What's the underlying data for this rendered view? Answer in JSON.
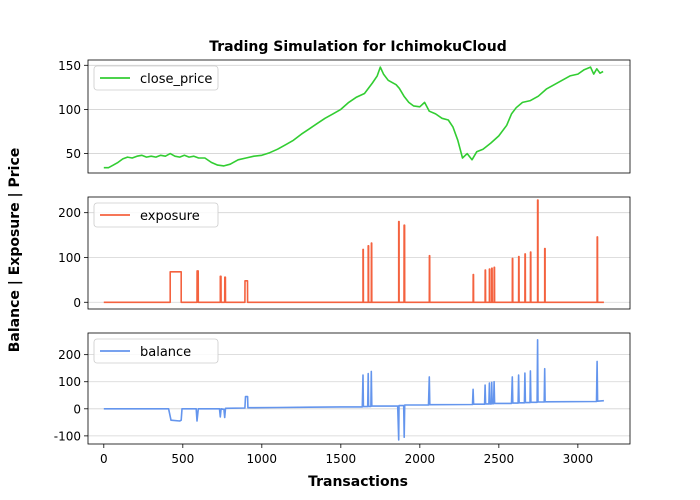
{
  "chart_data": {
    "type": "line",
    "title": "Trading Simulation for IchimokuCloud",
    "xlabel": "Transactions",
    "ylabel": "Balance | Exposure | Price",
    "xlim": [
      -100,
      3330
    ],
    "xticks": [
      0,
      500,
      1000,
      1500,
      2000,
      2500,
      3000
    ],
    "grid": "horizontal",
    "legend_position": "upper-left",
    "panels": [
      {
        "name": "price",
        "series_name": "close_price",
        "color": "#32cd32",
        "ylim": [
          28,
          156
        ],
        "yticks": [
          50,
          100,
          150
        ],
        "points": [
          [
            0,
            34
          ],
          [
            30,
            34
          ],
          [
            60,
            37
          ],
          [
            90,
            40
          ],
          [
            120,
            44
          ],
          [
            150,
            46
          ],
          [
            180,
            45
          ],
          [
            210,
            47
          ],
          [
            240,
            48
          ],
          [
            270,
            46
          ],
          [
            300,
            47
          ],
          [
            330,
            46
          ],
          [
            360,
            48
          ],
          [
            390,
            47
          ],
          [
            420,
            50
          ],
          [
            450,
            47
          ],
          [
            480,
            46
          ],
          [
            510,
            48
          ],
          [
            540,
            46
          ],
          [
            570,
            47
          ],
          [
            600,
            45
          ],
          [
            640,
            45
          ],
          [
            680,
            40
          ],
          [
            720,
            37
          ],
          [
            760,
            36
          ],
          [
            800,
            38
          ],
          [
            850,
            43
          ],
          [
            900,
            45
          ],
          [
            950,
            47
          ],
          [
            1000,
            48
          ],
          [
            1050,
            51
          ],
          [
            1100,
            55
          ],
          [
            1150,
            60
          ],
          [
            1200,
            65
          ],
          [
            1250,
            72
          ],
          [
            1300,
            78
          ],
          [
            1350,
            84
          ],
          [
            1400,
            90
          ],
          [
            1450,
            95
          ],
          [
            1500,
            100
          ],
          [
            1550,
            108
          ],
          [
            1600,
            114
          ],
          [
            1650,
            118
          ],
          [
            1700,
            130
          ],
          [
            1730,
            138
          ],
          [
            1750,
            148
          ],
          [
            1770,
            140
          ],
          [
            1800,
            133
          ],
          [
            1850,
            128
          ],
          [
            1870,
            124
          ],
          [
            1900,
            115
          ],
          [
            1930,
            108
          ],
          [
            1960,
            104
          ],
          [
            2000,
            103
          ],
          [
            2030,
            108
          ],
          [
            2060,
            98
          ],
          [
            2100,
            95
          ],
          [
            2140,
            90
          ],
          [
            2180,
            88
          ],
          [
            2210,
            80
          ],
          [
            2240,
            65
          ],
          [
            2270,
            45
          ],
          [
            2300,
            50
          ],
          [
            2330,
            43
          ],
          [
            2360,
            52
          ],
          [
            2400,
            55
          ],
          [
            2450,
            62
          ],
          [
            2500,
            70
          ],
          [
            2550,
            82
          ],
          [
            2580,
            95
          ],
          [
            2610,
            102
          ],
          [
            2650,
            108
          ],
          [
            2700,
            110
          ],
          [
            2750,
            115
          ],
          [
            2800,
            123
          ],
          [
            2850,
            128
          ],
          [
            2900,
            133
          ],
          [
            2950,
            138
          ],
          [
            3000,
            140
          ],
          [
            3040,
            145
          ],
          [
            3080,
            148
          ],
          [
            3100,
            140
          ],
          [
            3120,
            146
          ],
          [
            3140,
            141
          ],
          [
            3160,
            143
          ]
        ]
      },
      {
        "name": "exposure",
        "series_name": "exposure",
        "color": "#f4623f",
        "ylim": [
          -15,
          235
        ],
        "yticks": [
          0,
          100,
          200
        ],
        "baseline": 0,
        "pulses": [
          {
            "x0": 420,
            "x1": 490,
            "v": 68
          },
          {
            "x0": 590,
            "x1": 598,
            "v": 70
          },
          {
            "x0": 737,
            "x1": 742,
            "v": 58
          },
          {
            "x0": 765,
            "x1": 770,
            "v": 56
          },
          {
            "x0": 893,
            "x1": 910,
            "v": 48
          },
          {
            "x0": 1640,
            "x1": 1643,
            "v": 118
          },
          {
            "x0": 1673,
            "x1": 1676,
            "v": 126
          },
          {
            "x0": 1693,
            "x1": 1696,
            "v": 132
          },
          {
            "x0": 1866,
            "x1": 1869,
            "v": 180
          },
          {
            "x0": 1900,
            "x1": 1904,
            "v": 172
          },
          {
            "x0": 2060,
            "x1": 2063,
            "v": 104
          },
          {
            "x0": 2337,
            "x1": 2340,
            "v": 62
          },
          {
            "x0": 2413,
            "x1": 2416,
            "v": 72
          },
          {
            "x0": 2440,
            "x1": 2443,
            "v": 74
          },
          {
            "x0": 2455,
            "x1": 2458,
            "v": 76
          },
          {
            "x0": 2470,
            "x1": 2473,
            "v": 78
          },
          {
            "x0": 2585,
            "x1": 2588,
            "v": 98
          },
          {
            "x0": 2625,
            "x1": 2628,
            "v": 102
          },
          {
            "x0": 2665,
            "x1": 2668,
            "v": 108
          },
          {
            "x0": 2700,
            "x1": 2703,
            "v": 112
          },
          {
            "x0": 2745,
            "x1": 2748,
            "v": 228
          },
          {
            "x0": 2790,
            "x1": 2793,
            "v": 120
          },
          {
            "x0": 3122,
            "x1": 3125,
            "v": 146
          }
        ],
        "x_end": 3165
      },
      {
        "name": "balance",
        "series_name": "balance",
        "color": "#6495ed",
        "ylim": [
          -130,
          280
        ],
        "yticks": [
          -100,
          0,
          100,
          200
        ],
        "points": [
          [
            0,
            0
          ],
          [
            410,
            0
          ],
          [
            425,
            -42
          ],
          [
            480,
            -45
          ],
          [
            490,
            -42
          ],
          [
            495,
            0
          ],
          [
            585,
            0
          ],
          [
            590,
            -45
          ],
          [
            598,
            0
          ],
          [
            732,
            0
          ],
          [
            737,
            -30
          ],
          [
            742,
            0
          ],
          [
            760,
            -2
          ],
          [
            765,
            -32
          ],
          [
            770,
            2
          ],
          [
            893,
            3
          ],
          [
            897,
            45
          ],
          [
            910,
            45
          ],
          [
            912,
            4
          ],
          [
            1100,
            5
          ],
          [
            1300,
            6
          ],
          [
            1500,
            7
          ],
          [
            1636,
            7
          ],
          [
            1640,
            125
          ],
          [
            1643,
            8
          ],
          [
            1670,
            8
          ],
          [
            1673,
            130
          ],
          [
            1676,
            9
          ],
          [
            1690,
            9
          ],
          [
            1693,
            138
          ],
          [
            1696,
            10
          ],
          [
            1860,
            10
          ],
          [
            1866,
            -115
          ],
          [
            1868,
            12
          ],
          [
            1898,
            12
          ],
          [
            1901,
            -105
          ],
          [
            1904,
            14
          ],
          [
            2055,
            14
          ],
          [
            2060,
            118
          ],
          [
            2063,
            15
          ],
          [
            2333,
            16
          ],
          [
            2337,
            72
          ],
          [
            2340,
            17
          ],
          [
            2410,
            17
          ],
          [
            2413,
            88
          ],
          [
            2416,
            18
          ],
          [
            2437,
            18
          ],
          [
            2440,
            95
          ],
          [
            2443,
            18
          ],
          [
            2452,
            18
          ],
          [
            2455,
            98
          ],
          [
            2458,
            19
          ],
          [
            2467,
            19
          ],
          [
            2470,
            100
          ],
          [
            2473,
            20
          ],
          [
            2580,
            20
          ],
          [
            2585,
            118
          ],
          [
            2588,
            21
          ],
          [
            2622,
            21
          ],
          [
            2625,
            125
          ],
          [
            2628,
            22
          ],
          [
            2662,
            22
          ],
          [
            2665,
            132
          ],
          [
            2668,
            23
          ],
          [
            2697,
            23
          ],
          [
            2700,
            140
          ],
          [
            2703,
            24
          ],
          [
            2742,
            24
          ],
          [
            2745,
            255
          ],
          [
            2748,
            25
          ],
          [
            2787,
            25
          ],
          [
            2790,
            148
          ],
          [
            2793,
            26
          ],
          [
            3118,
            27
          ],
          [
            3122,
            175
          ],
          [
            3125,
            28
          ],
          [
            3165,
            30
          ]
        ]
      }
    ]
  }
}
